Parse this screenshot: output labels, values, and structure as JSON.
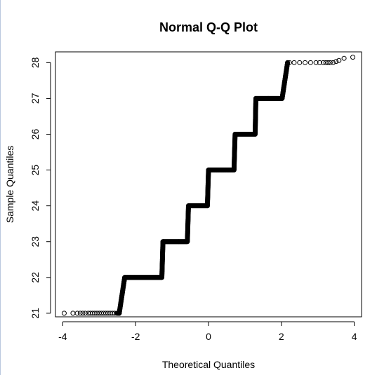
{
  "chart_data": {
    "type": "scatter",
    "title": "Normal Q-Q Plot",
    "xlabel": "Theoretical Quantiles",
    "ylabel": "Sample Quantiles",
    "xlim": [
      -4.2,
      4.2
    ],
    "ylim": [
      20.9,
      28.3
    ],
    "x_ticks": [
      -4,
      -2,
      0,
      2,
      4
    ],
    "x_tick_labels": [
      "-4",
      "-2",
      "0",
      "2",
      "4"
    ],
    "y_ticks": [
      21,
      22,
      23,
      24,
      25,
      26,
      27,
      28
    ],
    "y_tick_labels": [
      "21",
      "22",
      "23",
      "24",
      "25",
      "26",
      "27",
      "28"
    ],
    "grid": false,
    "marker": "open-circle",
    "point_color": "#000000",
    "steps": [
      {
        "y": 21,
        "x_start": -2.45,
        "x_end": -2.45
      },
      {
        "y": 22,
        "x_start": -2.3,
        "x_end": -1.28
      },
      {
        "y": 23,
        "x_start": -1.25,
        "x_end": -0.58
      },
      {
        "y": 24,
        "x_start": -0.55,
        "x_end": -0.03
      },
      {
        "y": 25,
        "x_start": 0.0,
        "x_end": 0.7
      },
      {
        "y": 26,
        "x_start": 0.73,
        "x_end": 1.28
      },
      {
        "y": 27,
        "x_start": 1.3,
        "x_end": 2.02
      },
      {
        "y": 28,
        "x_start": 2.17,
        "x_end": 2.17
      }
    ],
    "low_tail": {
      "y": 21,
      "x": [
        -3.96,
        -3.72,
        -3.6,
        -3.52,
        -3.45,
        -3.38,
        -3.3,
        -3.24,
        -3.18,
        -3.12,
        -3.06,
        -3.0,
        -2.94,
        -2.88,
        -2.82,
        -2.76,
        -2.7,
        -2.64,
        -2.58,
        -2.52
      ]
    },
    "high_tail": {
      "y": 28,
      "x": [
        2.22,
        2.35,
        2.5,
        2.65,
        2.8,
        2.95,
        3.05,
        3.15,
        3.22,
        3.28,
        3.34,
        3.42,
        3.5,
        3.58,
        3.72,
        3.96
      ]
    },
    "high_tail_y": [
      28.0,
      28.0,
      28.0,
      28.0,
      28.0,
      28.0,
      28.0,
      28.0,
      28.0,
      28.0,
      28.0,
      28.0,
      28.03,
      28.06,
      28.12,
      28.15
    ]
  }
}
